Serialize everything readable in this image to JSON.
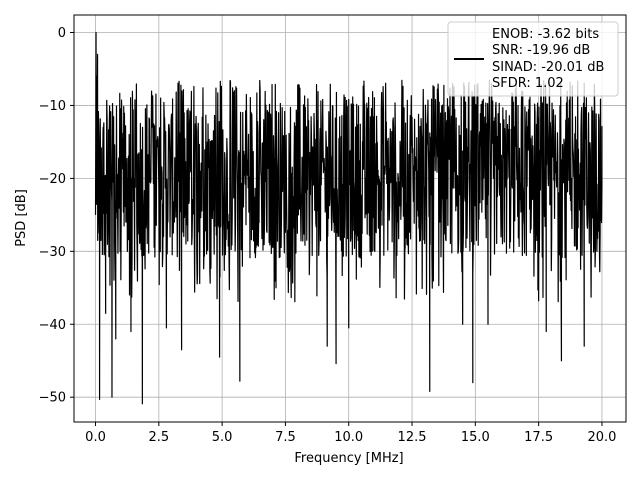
{
  "chart_data": {
    "type": "line",
    "title": "",
    "xlabel": "Frequency [MHz]",
    "ylabel": "PSD [dB]",
    "xlim": [
      -0.85,
      20.95
    ],
    "ylim": [
      -53.4,
      2.4
    ],
    "xticks": [
      0.0,
      2.5,
      5.0,
      7.5,
      10.0,
      12.5,
      15.0,
      17.5,
      20.0
    ],
    "xtick_labels": [
      "0.0",
      "2.5",
      "5.0",
      "7.5",
      "10.0",
      "12.5",
      "15.0",
      "17.5",
      "20.0"
    ],
    "yticks": [
      0,
      -10,
      -20,
      -30,
      -40,
      -50
    ],
    "ytick_labels": [
      "0",
      "−10",
      "−20",
      "−30",
      "−40",
      "−50"
    ],
    "grid": true,
    "legend_position": "top-right",
    "series": [
      {
        "legend_lines": [
          "ENOB: -3.62 bits",
          "SNR: -19.96 dB",
          "SINAD: -20.01 dB",
          "SFDR: 1.02"
        ],
        "color": "#000000",
        "noise_band": {
          "center_db": -20,
          "low_db": -32,
          "high_db": -9
        },
        "spectrum_points": [
          {
            "x": 0.0,
            "y": -25.0
          },
          {
            "x": 0.02,
            "y": 0.0
          },
          {
            "x": 0.05,
            "y": -6.0
          },
          {
            "x": 0.08,
            "y": -3.0
          },
          {
            "x": 0.12,
            "y": -12.0
          },
          {
            "x": 0.16,
            "y": -50.3
          },
          {
            "x": 0.3,
            "y": -13.0
          },
          {
            "x": 0.4,
            "y": -38.5
          },
          {
            "x": 0.65,
            "y": -50.0
          },
          {
            "x": 0.8,
            "y": -42.0
          },
          {
            "x": 1.4,
            "y": -41.0
          },
          {
            "x": 1.85,
            "y": -50.9
          },
          {
            "x": 2.8,
            "y": -40.5
          },
          {
            "x": 3.4,
            "y": -43.5
          },
          {
            "x": 4.9,
            "y": -44.5
          },
          {
            "x": 5.7,
            "y": -47.8
          },
          {
            "x": 9.15,
            "y": -43.0
          },
          {
            "x": 9.5,
            "y": -45.4
          },
          {
            "x": 10.0,
            "y": -40.5
          },
          {
            "x": 13.2,
            "y": -49.2
          },
          {
            "x": 14.5,
            "y": -40.0
          },
          {
            "x": 14.9,
            "y": -48.0
          },
          {
            "x": 15.5,
            "y": -40.0
          },
          {
            "x": 17.8,
            "y": -41.0
          },
          {
            "x": 18.4,
            "y": -45.0
          },
          {
            "x": 19.3,
            "y": -43.0
          },
          {
            "x": 20.0,
            "y": -21.0
          }
        ]
      }
    ]
  }
}
